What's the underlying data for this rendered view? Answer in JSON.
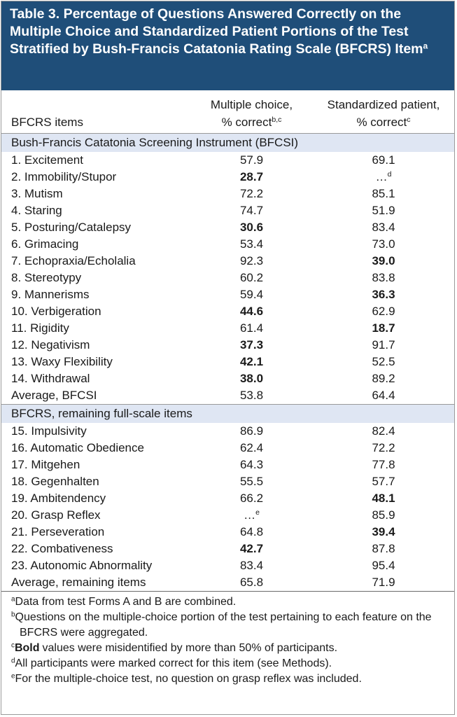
{
  "title": {
    "text": "Table 3. Percentage of Questions Answered Correctly on the Multiple Choice and Standardized Patient Portions of the Test Stratified by Bush-Francis Catatonia Rating Scale (BFCRS) Item",
    "sup": "a"
  },
  "columns": [
    {
      "lines": [
        "BFCRS items"
      ]
    },
    {
      "lines": [
        "Multiple choice,",
        "% correct"
      ],
      "sup": "b,c"
    },
    {
      "lines": [
        "Standardized patient,",
        "% correct"
      ],
      "sup": "c"
    }
  ],
  "sections": [
    {
      "heading": "Bush-Francis Catatonia Screening Instrument (BFCSI)",
      "rows": [
        [
          "1. Excitement",
          "57.9",
          "69.1"
        ],
        [
          "2. Immobility/Stupor",
          {
            "text": "28.7",
            "bold": true
          },
          {
            "text": "…",
            "sup": "d"
          }
        ],
        [
          "3. Mutism",
          "72.2",
          "85.1"
        ],
        [
          "4. Staring",
          "74.7",
          "51.9"
        ],
        [
          "5. Posturing/Catalepsy",
          {
            "text": "30.6",
            "bold": true
          },
          "83.4"
        ],
        [
          "6. Grimacing",
          "53.4",
          "73.0"
        ],
        [
          "7. Echopraxia/Echolalia",
          "92.3",
          {
            "text": "39.0",
            "bold": true
          }
        ],
        [
          "8. Stereotypy",
          "60.2",
          "83.8"
        ],
        [
          "9. Mannerisms",
          "59.4",
          {
            "text": "36.3",
            "bold": true
          }
        ],
        [
          "10. Verbigeration",
          {
            "text": "44.6",
            "bold": true
          },
          "62.9"
        ],
        [
          "11. Rigidity",
          "61.4",
          {
            "text": "18.7",
            "bold": true
          }
        ],
        [
          "12. Negativism",
          {
            "text": "37.3",
            "bold": true
          },
          "91.7"
        ],
        [
          "13. Waxy Flexibility",
          {
            "text": "42.1",
            "bold": true
          },
          "52.5"
        ],
        [
          "14. Withdrawal",
          {
            "text": "38.0",
            "bold": true
          },
          "89.2"
        ],
        [
          "Average, BFCSI",
          "53.8",
          "64.4"
        ]
      ]
    },
    {
      "heading": "BFCRS, remaining full-scale items",
      "rows": [
        [
          "15. Impulsivity",
          "86.9",
          "82.4"
        ],
        [
          "16. Automatic Obedience",
          "62.4",
          "72.2"
        ],
        [
          "17. Mitgehen",
          "64.3",
          "77.8"
        ],
        [
          "18. Gegenhalten",
          "55.5",
          "57.7"
        ],
        [
          "19. Ambitendency",
          "66.2",
          {
            "text": "48.1",
            "bold": true
          }
        ],
        [
          "20. Grasp Reflex",
          {
            "text": "…",
            "sup": "e"
          },
          "85.9"
        ],
        [
          "21. Perseveration",
          "64.8",
          {
            "text": "39.4",
            "bold": true
          }
        ],
        [
          "22. Combativeness",
          {
            "text": "42.7",
            "bold": true
          },
          "87.8"
        ],
        [
          "23. Autonomic Abnormality",
          "83.4",
          "95.4"
        ],
        [
          "Average, remaining items",
          "65.8",
          "71.9"
        ]
      ]
    }
  ],
  "footnotes": [
    {
      "mark": "a",
      "parts": [
        {
          "text": "Data from test Forms A and B are combined."
        }
      ]
    },
    {
      "mark": "b",
      "parts": [
        {
          "text": "Questions on the multiple-choice portion of the test pertaining to each feature on the BFCRS were aggregated."
        }
      ]
    },
    {
      "mark": "c",
      "parts": [
        {
          "text": "Bold",
          "bold": true
        },
        {
          "text": "values were misidentified by more than 50% of participants."
        }
      ]
    },
    {
      "mark": "d",
      "parts": [
        {
          "text": "All participants were marked correct for this item (see Methods)."
        }
      ]
    },
    {
      "mark": "e",
      "parts": [
        {
          "text": "For the multiple-choice test, no question on grasp reflex was included."
        }
      ]
    }
  ]
}
